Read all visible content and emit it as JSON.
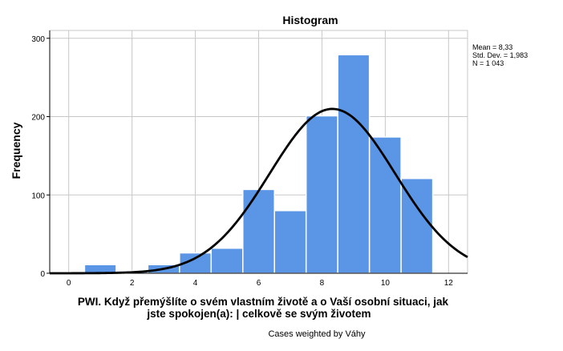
{
  "chart_data": {
    "type": "bar",
    "title": "Histogram",
    "xlabel_lines": [
      "PWI. Když přemýšlíte o svém vlastním životě a o Vaší osobní situaci, jak",
      "jste spokojen(a): | celkově se svým životem"
    ],
    "ylabel": "Frequency",
    "footnote": "Cases weighted by Váhy",
    "stats": [
      "Mean = 8,33",
      "Std. Dev. = 1,983",
      "N = 1 043"
    ],
    "xlim": [
      -0.6,
      12.6
    ],
    "ylim": [
      0,
      310
    ],
    "xticks": [
      0,
      2,
      4,
      6,
      8,
      10,
      12
    ],
    "yticks": [
      0,
      100,
      200,
      300
    ],
    "grid": true,
    "bin_width": 1,
    "bins": [
      {
        "x": 1,
        "count": 11
      },
      {
        "x": 2,
        "count": 3
      },
      {
        "x": 3,
        "count": 11
      },
      {
        "x": 4,
        "count": 26
      },
      {
        "x": 5,
        "count": 32
      },
      {
        "x": 6,
        "count": 107
      },
      {
        "x": 7,
        "count": 80
      },
      {
        "x": 8,
        "count": 201
      },
      {
        "x": 9,
        "count": 279
      },
      {
        "x": 10,
        "count": 174
      },
      {
        "x": 11,
        "count": 121
      }
    ],
    "normal_curve": {
      "mean": 8.33,
      "sd": 1.983,
      "n": 1043
    }
  },
  "colors": {
    "bar": "#5b95e5",
    "bar_edge": "#ffffff",
    "grid": "#c8c8c8",
    "axis": "#000000",
    "curve": "#000000"
  }
}
